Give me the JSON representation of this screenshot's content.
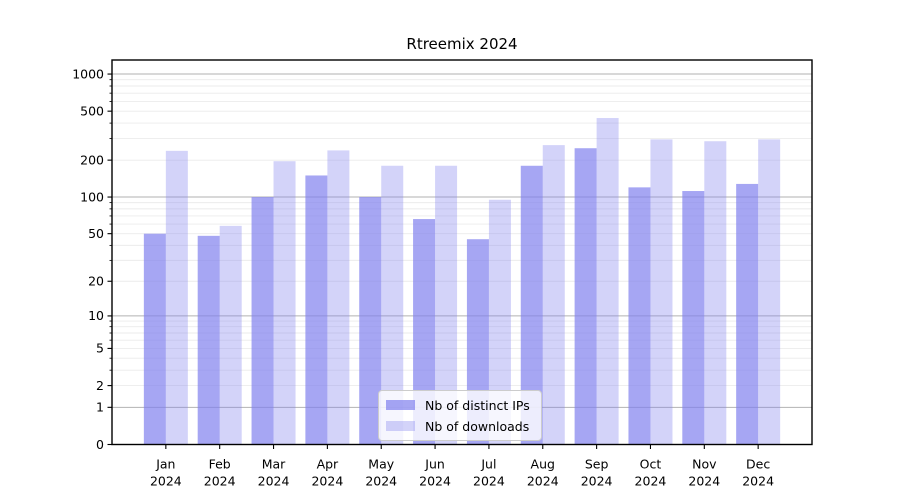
{
  "chart_data": {
    "type": "bar",
    "title": "Rtreemix 2024",
    "categories": [
      "Jan",
      "Feb",
      "Mar",
      "Apr",
      "May",
      "Jun",
      "Jul",
      "Aug",
      "Sep",
      "Oct",
      "Nov",
      "Dec"
    ],
    "year": "2024",
    "series": [
      {
        "name": "Nb of distinct IPs",
        "color": "rgba(128,128,238,0.7)",
        "values": [
          50,
          48,
          100,
          150,
          100,
          66,
          45,
          180,
          250,
          120,
          112,
          128
        ]
      },
      {
        "name": "Nb of downloads",
        "color": "rgba(128,128,238,0.35)",
        "values": [
          238,
          58,
          196,
          240,
          180,
          180,
          95,
          265,
          440,
          295,
          285,
          295
        ]
      }
    ],
    "yticks": [
      0,
      1,
      2,
      5,
      10,
      20,
      50,
      100,
      200,
      500,
      1000
    ],
    "ylim": [
      0,
      1300
    ],
    "scale": "log1p",
    "grid": true,
    "legend_position": "lower-center",
    "axis_color": "#000000",
    "major_grid_color": "#b2b2b2",
    "minor_grid_color": "#ebebeb"
  }
}
